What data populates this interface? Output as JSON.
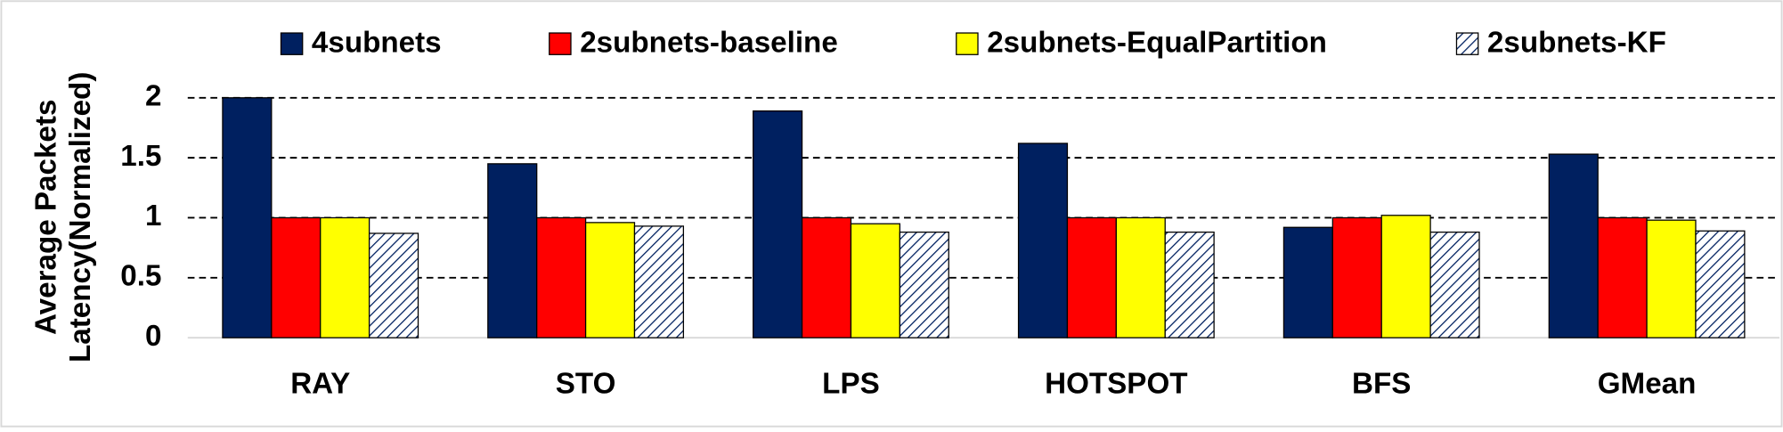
{
  "chart_data": {
    "type": "bar",
    "ylabel": [
      "Average Packets",
      "Latency(Normalized)"
    ],
    "categories": [
      "RAY",
      "STO",
      "LPS",
      "HOTSPOT",
      "BFS",
      "GMean"
    ],
    "series": [
      {
        "name": "4subnets",
        "color": "#002060",
        "values": [
          2.0,
          1.45,
          1.89,
          1.62,
          0.92,
          1.53
        ]
      },
      {
        "name": "2subnets-baseline",
        "color": "#ff0000",
        "values": [
          1.0,
          1.0,
          1.0,
          1.0,
          1.0,
          1.0
        ]
      },
      {
        "name": "2subnets-EqualPartition",
        "color": "#ffff00",
        "values": [
          1.0,
          0.96,
          0.95,
          1.0,
          1.02,
          0.98
        ]
      },
      {
        "name": "2subnets-KF",
        "color": "#002060",
        "hatch": true,
        "values": [
          0.87,
          0.93,
          0.88,
          0.88,
          0.88,
          0.89
        ]
      }
    ],
    "ylim": [
      0,
      2
    ],
    "yticks": [
      0,
      0.5,
      1,
      1.5,
      2
    ],
    "grid": true,
    "legend": "top"
  }
}
